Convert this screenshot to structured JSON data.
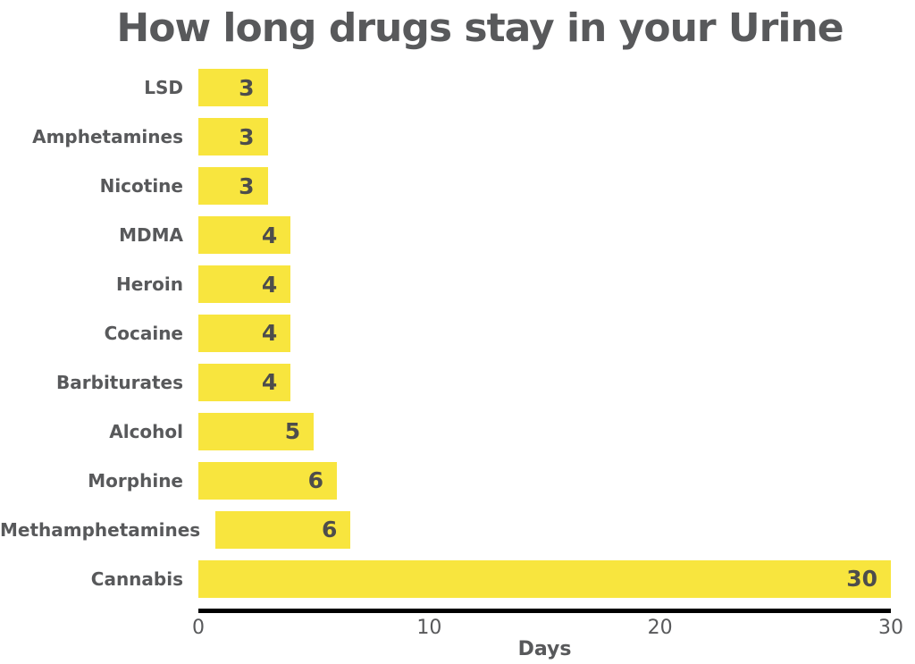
{
  "title": "How long drugs stay in your Urine",
  "chart_data": {
    "type": "bar",
    "orientation": "horizontal",
    "title": "How long drugs stay in your Urine",
    "categories": [
      "LSD",
      "Amphetamines",
      "Nicotine",
      "MDMA",
      "Heroin",
      "Cocaine",
      "Barbiturates",
      "Alcohol",
      "Morphine",
      "Methamphetamines",
      "Cannabis"
    ],
    "values": [
      3,
      3,
      3,
      4,
      4,
      4,
      4,
      5,
      6,
      6,
      30
    ],
    "xlabel": "Days",
    "ylabel": "",
    "xlim": [
      0,
      30
    ],
    "xticks": [
      0,
      10,
      20,
      30
    ],
    "grid": false,
    "legend": "none",
    "value_labels_shown": true
  },
  "colors": {
    "bar": "#F8E53E",
    "text": "#58595B",
    "value_text": "#4D4D4C",
    "axis": "#000000",
    "background": "#FFFFFF"
  }
}
